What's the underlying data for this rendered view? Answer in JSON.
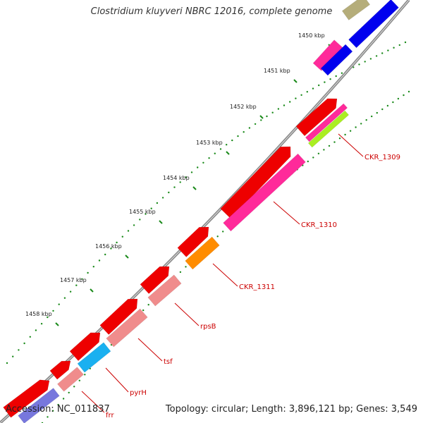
{
  "title": "Clostridium kluyveri NBRC 12016, complete genome",
  "footer": {
    "accession": "Accession: NC_011837",
    "topology": "Topology: circular; Length: 3,896,121 bp; Genes: 3,549"
  },
  "colors": {
    "backbone": "#777777",
    "tick": "#1a8a1a",
    "label": "#cc0000",
    "leader": "#cc0000",
    "outer_gene": "#ee0000"
  },
  "ticks": [
    {
      "label": "1450 kbp"
    },
    {
      "label": "1451 kbp"
    },
    {
      "label": "1452 kbp"
    },
    {
      "label": "1453 kbp"
    },
    {
      "label": "1454 kbp"
    },
    {
      "label": "1455 kbp"
    },
    {
      "label": "1456 kbp"
    },
    {
      "label": "1457 kbp"
    },
    {
      "label": "1458 kbp"
    }
  ],
  "gene_labels": [
    {
      "text": "CKR_1309"
    },
    {
      "text": "CKR_1310"
    },
    {
      "text": "CKR_1311"
    },
    {
      "text": "rpsB"
    },
    {
      "text": "tsf"
    },
    {
      "text": "pyrH"
    },
    {
      "text": "frr"
    }
  ],
  "features": [
    {
      "color": "#b5ad7a",
      "ring": "outer"
    },
    {
      "color": "#0000ee",
      "ring": "inner"
    },
    {
      "color": "#ee0000",
      "ring": "outer"
    },
    {
      "color": "#ff2a9a",
      "ring": "inner"
    },
    {
      "color": "#aaee22",
      "ring": "inner"
    },
    {
      "color": "#ff8c00",
      "ring": "inner"
    },
    {
      "color": "#f08c8c",
      "ring": "inner"
    },
    {
      "color": "#1ab0f0",
      "ring": "inner"
    },
    {
      "color": "#7777dd",
      "ring": "inner"
    }
  ]
}
